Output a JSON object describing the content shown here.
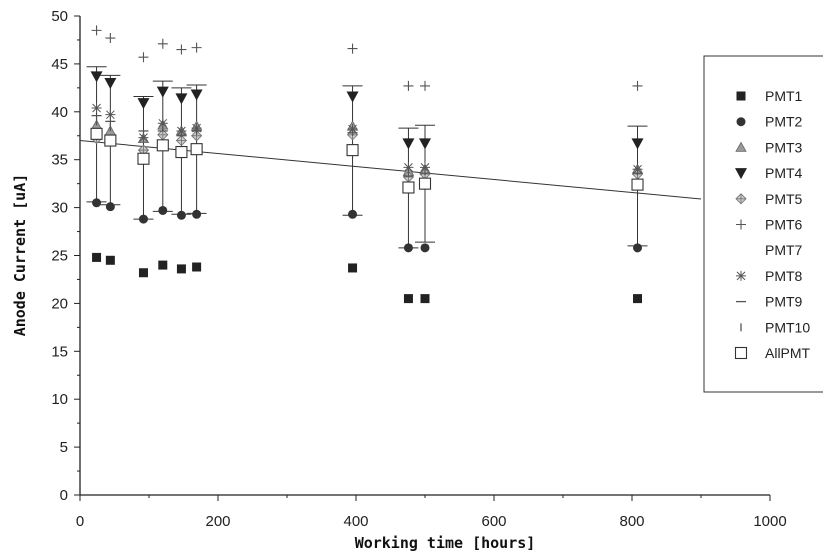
{
  "chart_data": {
    "type": "scatter",
    "title": "",
    "xlabel": "Working time [hours]",
    "ylabel": "Anode Current [uA]",
    "xlim": [
      0,
      1000
    ],
    "ylim": [
      0,
      50
    ],
    "xticks": [
      0,
      200,
      400,
      600,
      800,
      1000
    ],
    "yticks": [
      0,
      5,
      10,
      15,
      20,
      25,
      30,
      35,
      40,
      45,
      50
    ],
    "grid": false,
    "legend_position": "right",
    "legend": [
      "PMT1",
      "PMT2",
      "PMT3",
      "PMT4",
      "PMT5",
      "PMT6",
      "PMT7",
      "PMT8",
      "PMT9",
      "PMT10",
      "AllPMT"
    ],
    "x": [
      24,
      44,
      92,
      120,
      147,
      169,
      395,
      476,
      500,
      808
    ],
    "series": [
      {
        "name": "PMT1",
        "marker": "square-filled",
        "values": [
          24.8,
          24.5,
          23.2,
          24.0,
          23.6,
          23.8,
          23.7,
          20.5,
          20.5,
          20.5
        ]
      },
      {
        "name": "PMT2",
        "marker": "circle-filled",
        "values": [
          30.5,
          30.1,
          28.8,
          29.7,
          29.2,
          29.3,
          29.3,
          25.8,
          25.8,
          25.8
        ]
      },
      {
        "name": "PMT3",
        "marker": "triangle-up",
        "values": [
          38.6,
          38.0,
          37.2,
          38.6,
          38.0,
          38.5,
          38.5,
          33.8,
          34.0,
          34.0
        ]
      },
      {
        "name": "PMT4",
        "marker": "triangle-down-filled",
        "values": [
          43.7,
          43.0,
          40.9,
          42.1,
          41.4,
          41.8,
          41.6,
          36.7,
          36.7,
          36.7
        ]
      },
      {
        "name": "PMT5",
        "marker": "diamond-cross",
        "values": [
          37.2,
          37.0,
          36.0,
          37.6,
          37.0,
          37.5,
          37.6,
          33.2,
          33.5,
          33.5
        ]
      },
      {
        "name": "PMT6",
        "marker": "plus",
        "values": [
          48.5,
          47.7,
          45.7,
          47.1,
          46.5,
          46.7,
          46.6,
          42.7,
          42.7,
          42.7
        ]
      },
      {
        "name": "PMT7",
        "marker": "none",
        "values": [
          36.5,
          36.0,
          34.9,
          36.0,
          35.4,
          35.8,
          35.8,
          31.8,
          32.0,
          32.0
        ]
      },
      {
        "name": "PMT8",
        "marker": "asterisk",
        "values": [
          40.4,
          39.7,
          37.3,
          38.8,
          38.0,
          38.3,
          38.2,
          34.2,
          34.2,
          34.0
        ]
      },
      {
        "name": "PMT9",
        "marker": "dash",
        "values": [
          39.6,
          39.0,
          38.0,
          38.0,
          37.5,
          38.0,
          37.8,
          33.3,
          33.6,
          33.6
        ]
      },
      {
        "name": "PMT10",
        "marker": "vbar",
        "values": [
          39.0,
          38.4,
          37.6,
          38.4,
          37.8,
          38.0,
          37.9,
          33.6,
          33.8,
          33.8
        ]
      }
    ],
    "allpmt": {
      "name": "AllPMT",
      "marker": "square-open",
      "values": [
        37.7,
        37.0,
        35.1,
        36.5,
        35.8,
        36.1,
        36.0,
        32.1,
        32.5,
        32.4
      ],
      "error_low": [
        30.6,
        30.3,
        28.8,
        29.6,
        29.3,
        29.4,
        29.2,
        25.8,
        26.4,
        26.0
      ],
      "error_high": [
        44.7,
        43.8,
        41.6,
        43.2,
        42.5,
        42.8,
        42.7,
        38.3,
        38.6,
        38.5
      ]
    },
    "fit_line": {
      "x": [
        0,
        900
      ],
      "y": [
        37.0,
        30.9
      ]
    }
  }
}
